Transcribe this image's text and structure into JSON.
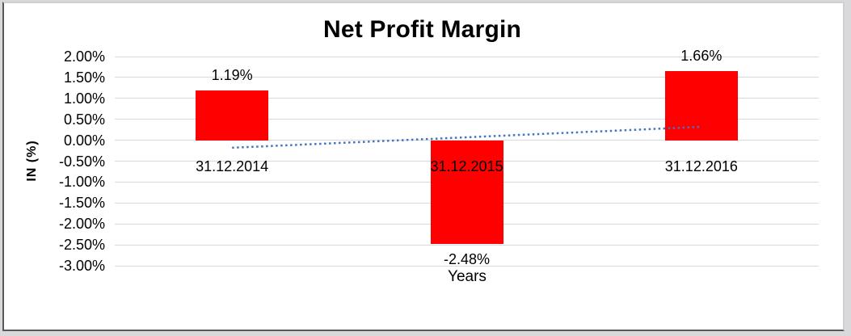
{
  "chart_data": {
    "type": "bar",
    "title": "Net Profit Margin",
    "xlabel": "Years",
    "ylabel": "IN (%)",
    "categories": [
      "31.12.2014",
      "31.12.2015",
      "31.12.2016"
    ],
    "values": [
      1.19,
      -2.48,
      1.66
    ],
    "value_labels": [
      "1.19%",
      "-2.48%",
      "1.66%"
    ],
    "ylim": [
      -3.0,
      2.0
    ],
    "ytick_step": 0.5,
    "ytick_labels": [
      "2.00%",
      "1.50%",
      "1.00%",
      "0.50%",
      "0.00%",
      "-0.50%",
      "-1.00%",
      "-1.50%",
      "-2.00%",
      "-2.50%",
      "-3.00%"
    ],
    "grid": true,
    "legend": "none",
    "bar_color": "#FF0000",
    "gridline_color": "#D9D9D9",
    "trendline": {
      "type": "linear",
      "style": "dotted",
      "color": "#4472C4",
      "start_value": -0.18,
      "end_value": 0.32
    }
  }
}
